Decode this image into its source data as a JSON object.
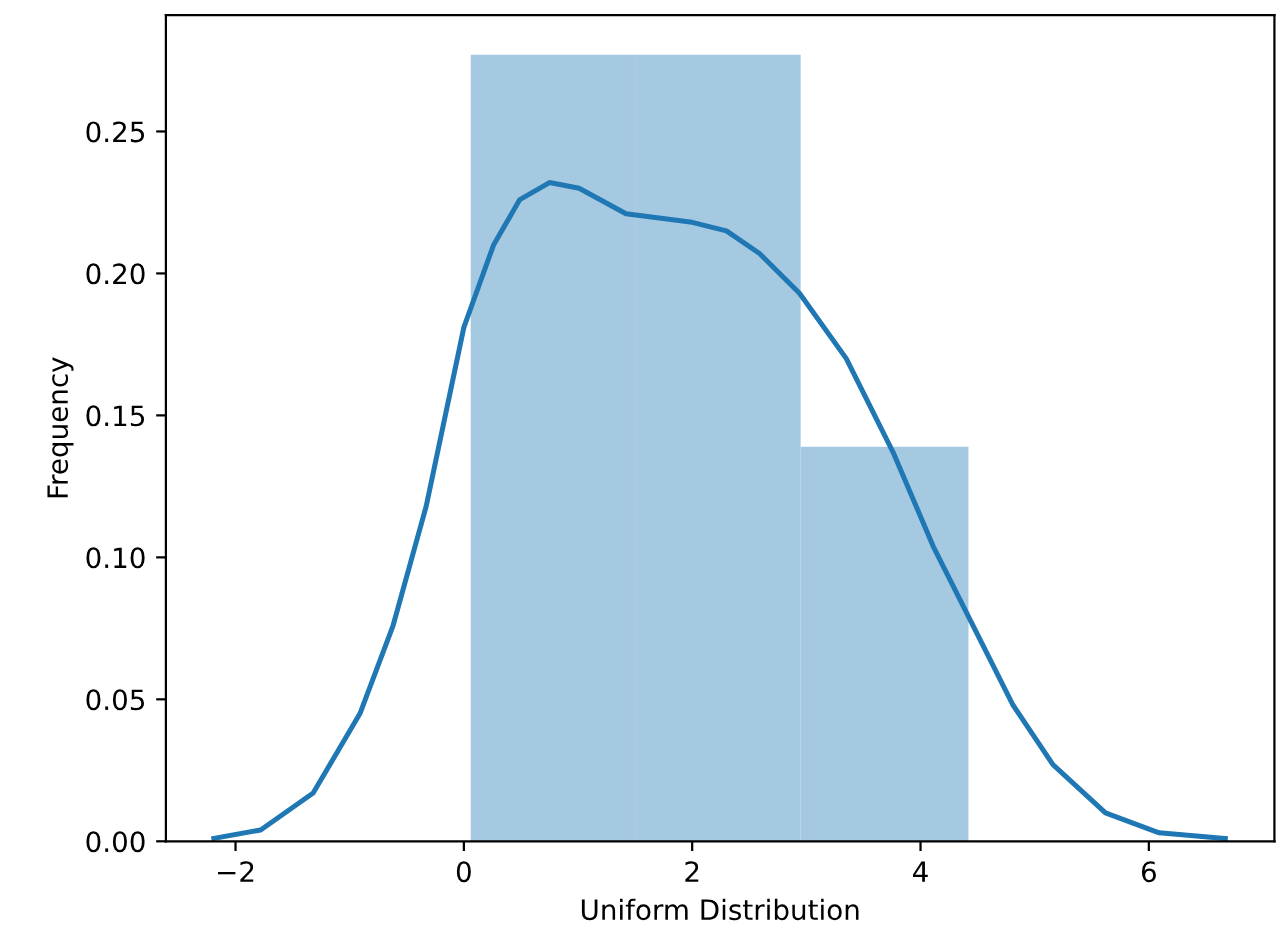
{
  "chart_data": {
    "type": "histogram",
    "xlabel": "Uniform Distribution",
    "ylabel": "Frequency",
    "bins": [
      0.06,
      1.5,
      2.95,
      4.42
    ],
    "values": [
      0.277,
      0.277,
      0.139
    ],
    "color": "#a5c9e1",
    "series": [
      {
        "type": "line",
        "color": "#1f77b4",
        "x": [
          -2.19,
          -1.78,
          -1.32,
          -0.91,
          -0.62,
          -0.33,
          0.0,
          0.26,
          0.49,
          0.75,
          1.01,
          1.42,
          2.0,
          2.3,
          2.59,
          2.94,
          3.35,
          3.76,
          4.11,
          4.46,
          4.81,
          5.16,
          5.62,
          6.09,
          6.67
        ],
        "values": [
          0.001,
          0.004,
          0.017,
          0.045,
          0.076,
          0.118,
          0.181,
          0.21,
          0.226,
          0.232,
          0.23,
          0.221,
          0.218,
          0.215,
          0.207,
          0.193,
          0.17,
          0.137,
          0.104,
          0.076,
          0.048,
          0.027,
          0.01,
          0.003,
          0.001
        ]
      }
    ],
    "xlim": [
      -2.61,
      7.1
    ],
    "ylim": [
      0,
      0.291
    ],
    "xticks": [
      -2,
      0,
      2,
      4,
      6
    ],
    "yticks": [
      {
        "value": 0,
        "label": "0.00"
      },
      {
        "value": 0.05,
        "label": "0.05"
      },
      {
        "value": 0.1,
        "label": "0.10"
      },
      {
        "value": 0.15,
        "label": "0.15"
      },
      {
        "value": 0.2,
        "label": "0.20"
      },
      {
        "value": 0.25,
        "label": "0.25"
      }
    ],
    "grid": false
  }
}
